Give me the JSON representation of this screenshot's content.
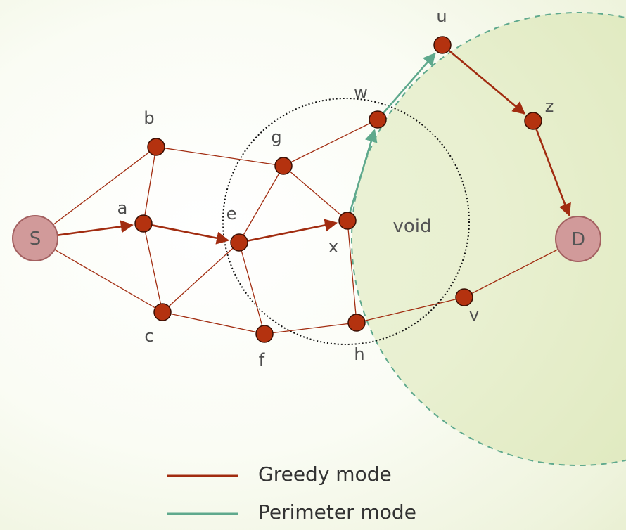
{
  "colors": {
    "greedy": "#a12c10",
    "perimeter": "#5fa98d",
    "node_fill": "#b4320f",
    "node_stroke": "#3a0f04",
    "endpoint_fill": "#d19a9a",
    "endpoint_stroke": "#a36060",
    "void_fill": "#c8d98f"
  },
  "nodes": [
    {
      "id": "S",
      "label": "S",
      "kind": "endpoint"
    },
    {
      "id": "a",
      "label": "a",
      "kind": "node"
    },
    {
      "id": "b",
      "label": "b",
      "kind": "node"
    },
    {
      "id": "c",
      "label": "c",
      "kind": "node"
    },
    {
      "id": "e",
      "label": "e",
      "kind": "node"
    },
    {
      "id": "f",
      "label": "f",
      "kind": "node"
    },
    {
      "id": "g",
      "label": "g",
      "kind": "node"
    },
    {
      "id": "x",
      "label": "x",
      "kind": "node"
    },
    {
      "id": "w",
      "label": "w",
      "kind": "node"
    },
    {
      "id": "h",
      "label": "h",
      "kind": "node"
    },
    {
      "id": "u",
      "label": "u",
      "kind": "node"
    },
    {
      "id": "z",
      "label": "z",
      "kind": "node"
    },
    {
      "id": "v",
      "label": "v",
      "kind": "node"
    },
    {
      "id": "D",
      "label": "D",
      "kind": "endpoint"
    }
  ],
  "edges": [
    [
      "S",
      "b"
    ],
    [
      "S",
      "c"
    ],
    [
      "b",
      "a"
    ],
    [
      "a",
      "c"
    ],
    [
      "b",
      "g"
    ],
    [
      "c",
      "e"
    ],
    [
      "c",
      "f"
    ],
    [
      "e",
      "g"
    ],
    [
      "e",
      "f"
    ],
    [
      "g",
      "w"
    ],
    [
      "g",
      "x"
    ],
    [
      "x",
      "h"
    ],
    [
      "f",
      "h"
    ],
    [
      "h",
      "v"
    ],
    [
      "v",
      "D"
    ]
  ],
  "greedy_path": [
    [
      "S",
      "a"
    ],
    [
      "a",
      "e"
    ],
    [
      "e",
      "x"
    ],
    [
      "u",
      "z"
    ],
    [
      "z",
      "D"
    ]
  ],
  "perimeter_path": [
    [
      "x",
      "w"
    ],
    [
      "w",
      "u"
    ]
  ],
  "void_label": "void",
  "legend": {
    "greedy": "Greedy mode",
    "perimeter": "Perimeter mode"
  }
}
